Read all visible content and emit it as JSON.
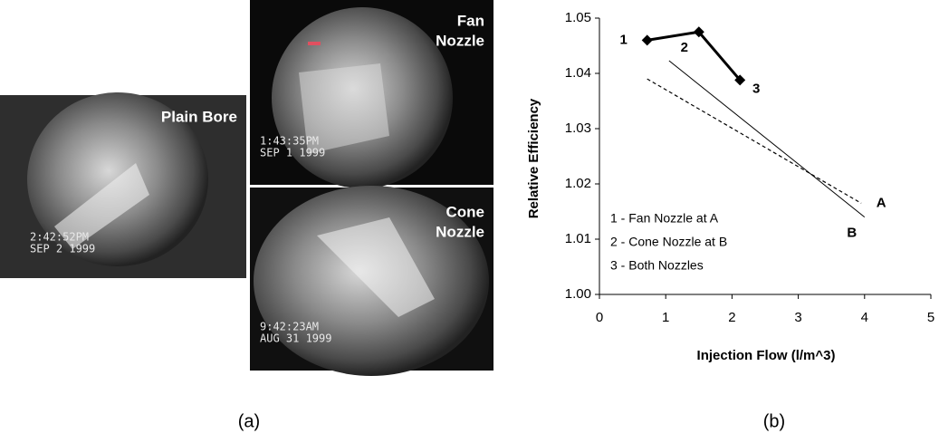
{
  "photos": [
    {
      "label": [
        "Plain Bore"
      ],
      "timestamp": [
        "2:42:52PM",
        "SEP  2 1999"
      ]
    },
    {
      "label": [
        "Fan",
        "Nozzle"
      ],
      "timestamp": [
        "1:43:35PM",
        "SEP  1 1999"
      ]
    },
    {
      "label": [
        "Cone",
        "Nozzle"
      ],
      "timestamp": [
        "9:42:23AM",
        "AUG 31 1999"
      ]
    }
  ],
  "captions": [
    "(a)",
    "(b)"
  ],
  "chart_data": {
    "type": "line",
    "x_label": "Injection Flow (l/m^3)",
    "y_label": "Relative Efficiency",
    "xlim": [
      0,
      5
    ],
    "xticks": [
      0,
      1,
      2,
      3,
      4,
      5
    ],
    "ylim": [
      1.0,
      1.05
    ],
    "yticks": [
      {
        "value": 1.0,
        "label": "1.00"
      },
      1.01,
      1.02,
      1.03,
      1.04,
      1.05
    ],
    "series": [
      {
        "name": "A",
        "color": "#000000",
        "dash": "dotted",
        "x": [
          0.72,
          3.95
        ],
        "values": [
          1.039,
          1.0165
        ]
      },
      {
        "name": "B",
        "color": "#000000",
        "dash": "solid",
        "x": [
          1.05,
          4.0
        ],
        "values": [
          1.0423,
          1.014
        ]
      },
      {
        "color": "#000000",
        "dash": "thick",
        "marker": "diamond",
        "x": [
          0.72,
          1.5,
          2.12
        ],
        "values": [
          1.046,
          1.0475,
          1.0388
        ],
        "point_labels": [
          "1",
          "2",
          "3"
        ]
      }
    ],
    "notes": [
      "1 - Fan Nozzle at A",
      "2 - Cone Nozzle at B",
      "3 - Both Nozzles"
    ]
  }
}
